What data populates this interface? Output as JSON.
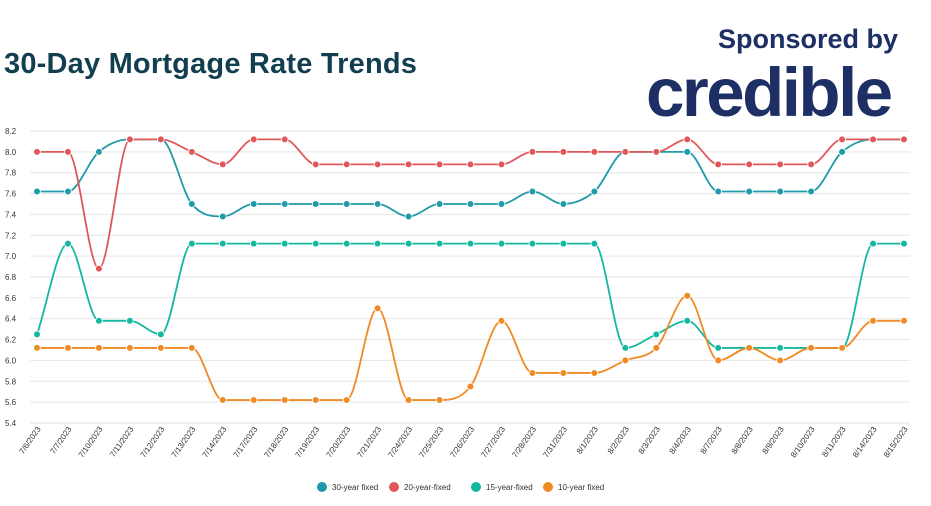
{
  "header": {
    "title": "30-Day Mortgage Rate Trends",
    "sponsor_text": "Sponsored by",
    "brand_name": "credible"
  },
  "chart_data": {
    "type": "line",
    "title": "30-Day Mortgage Rate Trends",
    "xlabel": "",
    "ylabel": "",
    "ylim": [
      5.4,
      8.2
    ],
    "yticks": [
      "5.4",
      "5.6",
      "5.8",
      "6.0",
      "6.2",
      "6.4",
      "6.6",
      "6.8",
      "7.0",
      "7.2",
      "7.4",
      "7.6",
      "7.8",
      "8.0",
      "8.2"
    ],
    "grid": true,
    "legend_position": "bottom",
    "categories": [
      "7/6/2023",
      "7/7/2023",
      "7/10/2023",
      "7/11/2023",
      "7/12/2023",
      "7/13/2023",
      "7/14/2023",
      "7/17/2023",
      "7/18/2023",
      "7/19/2023",
      "7/20/2023",
      "7/21/2023",
      "7/24/2023",
      "7/25/2023",
      "7/26/2023",
      "7/27/2023",
      "7/28/2023",
      "7/31/2023",
      "8/1/2023",
      "8/2/2023",
      "8/3/2023",
      "8/4/2023",
      "8/7/2023",
      "8/8/2023",
      "8/9/2023",
      "8/10/2023",
      "8/11/2023",
      "8/14/2023",
      "8/15/2023"
    ],
    "series": [
      {
        "name": "30-year fixed",
        "color": "#1f9aa8",
        "values": [
          7.62,
          7.62,
          8.0,
          8.12,
          8.12,
          7.5,
          7.38,
          7.5,
          7.5,
          7.5,
          7.5,
          7.5,
          7.38,
          7.5,
          7.5,
          7.5,
          7.62,
          7.5,
          7.62,
          8.0,
          8.0,
          8.0,
          7.62,
          7.62,
          7.62,
          7.62,
          8.0,
          8.12,
          8.12
        ]
      },
      {
        "name": "20-year-fixed",
        "color": "#e05759",
        "values": [
          8.0,
          8.0,
          6.88,
          8.12,
          8.12,
          8.0,
          7.88,
          8.12,
          8.12,
          7.88,
          7.88,
          7.88,
          7.88,
          7.88,
          7.88,
          7.88,
          8.0,
          8.0,
          8.0,
          8.0,
          8.0,
          8.12,
          7.88,
          7.88,
          7.88,
          7.88,
          8.12,
          8.12,
          8.12
        ]
      },
      {
        "name": "15-year-fixed",
        "color": "#14b8a0",
        "values": [
          6.25,
          7.12,
          6.38,
          6.38,
          6.25,
          7.12,
          7.12,
          7.12,
          7.12,
          7.12,
          7.12,
          7.12,
          7.12,
          7.12,
          7.12,
          7.12,
          7.12,
          7.12,
          7.12,
          6.12,
          6.25,
          6.38,
          6.12,
          6.12,
          6.12,
          6.12,
          6.12,
          7.12,
          7.12
        ]
      },
      {
        "name": "10-year fixed",
        "color": "#f08a24",
        "values": [
          6.12,
          6.12,
          6.12,
          6.12,
          6.12,
          6.12,
          5.62,
          5.62,
          5.62,
          5.62,
          5.62,
          6.5,
          5.62,
          5.62,
          5.75,
          6.38,
          5.88,
          5.88,
          5.88,
          6.0,
          6.12,
          6.62,
          6.0,
          6.12,
          6.0,
          6.12,
          6.12,
          6.38,
          6.38
        ]
      }
    ]
  }
}
